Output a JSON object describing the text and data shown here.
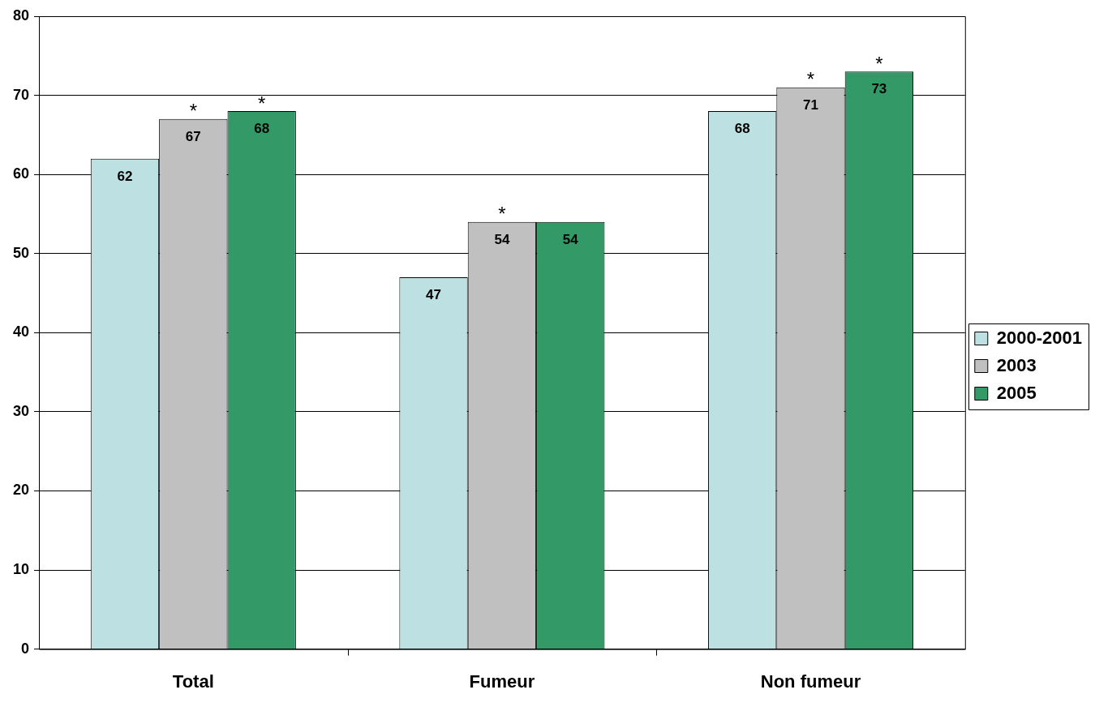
{
  "chart_data": {
    "type": "bar",
    "categories": [
      "Total",
      "Fumeur",
      "Non fumeur"
    ],
    "series": [
      {
        "name": "2000-2001",
        "color": "#bde0e3",
        "values": [
          62,
          47,
          68
        ]
      },
      {
        "name": "2003",
        "color": "#c0c0c0",
        "values": [
          67,
          54,
          71
        ]
      },
      {
        "name": "2005",
        "color": "#339966",
        "values": [
          68,
          54,
          73
        ]
      }
    ],
    "ylim": [
      0,
      80
    ],
    "yticks": [
      0,
      10,
      20,
      30,
      40,
      50,
      60,
      70,
      80
    ],
    "grid": "y",
    "legend": "right",
    "data_labels": true,
    "annotations": [
      "*",
      "*",
      "*",
      "*",
      "*"
    ]
  }
}
